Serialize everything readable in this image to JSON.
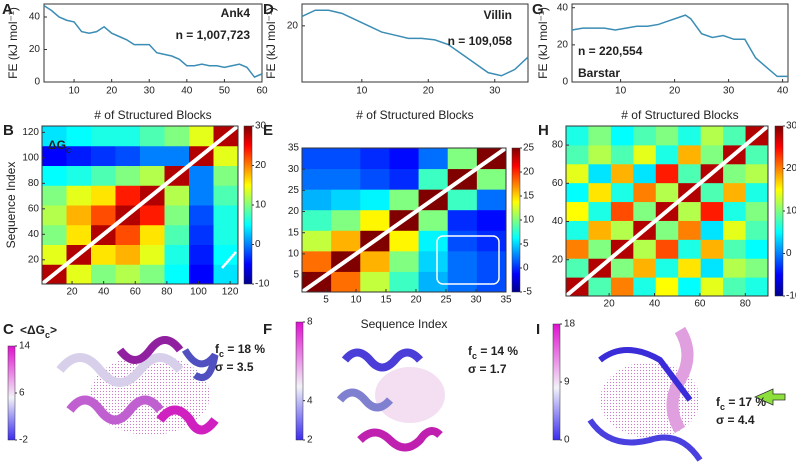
{
  "chart_data": [
    {
      "type": "line",
      "panel": "A",
      "title": "Ank4",
      "n": "n = 1,007,723",
      "ylabel": "FE (kJ mol⁻¹)",
      "xlabel": "# of Structured Blocks",
      "color": "#3b8db5",
      "x": [
        2,
        4,
        6,
        8,
        10,
        12,
        14,
        16,
        18,
        20,
        22,
        24,
        26,
        28,
        30,
        32,
        34,
        36,
        38,
        40,
        42,
        44,
        46,
        48,
        50,
        52,
        54,
        56,
        58,
        60
      ],
      "values": [
        47,
        44,
        40,
        38,
        37,
        31,
        30,
        31,
        34,
        30,
        28,
        26,
        23,
        23,
        23,
        18,
        17,
        16,
        14,
        10,
        10,
        11,
        10,
        10,
        9,
        10,
        11,
        9,
        3,
        5
      ],
      "xlim": [
        2,
        60
      ],
      "ylim": [
        0,
        48
      ],
      "xticks": [
        10,
        20,
        30,
        40,
        50,
        60
      ],
      "yticks": [
        0,
        20,
        40
      ]
    },
    {
      "type": "line",
      "panel": "D",
      "title": "Villin",
      "n": "n = 109,058",
      "ylabel": "FE (kJ mol⁻¹)",
      "xlabel": "# of Structured Blocks",
      "color": "#3b8db5",
      "x": [
        1,
        3,
        5,
        7,
        9,
        11,
        13,
        15,
        17,
        19,
        21,
        23,
        25,
        27,
        29,
        31,
        33,
        35
      ],
      "values": [
        23,
        25,
        25,
        24,
        22,
        20,
        18,
        17,
        16,
        16,
        15.5,
        14,
        11,
        8,
        5,
        4,
        6,
        10
      ],
      "xlim": [
        1,
        35
      ],
      "ylim": [
        2,
        27
      ],
      "xticks": [
        10,
        20,
        30
      ],
      "yticks": [
        20
      ]
    },
    {
      "type": "line",
      "panel": "G",
      "title": "Barstar",
      "n": "n = 220,554",
      "ylabel": "FE (kJ mol⁻¹)",
      "xlabel": "# of Structured Blocks",
      "color": "#3b8db5",
      "x": [
        1,
        3,
        5,
        7,
        9,
        11,
        13,
        15,
        17,
        19,
        21,
        22,
        23,
        25,
        27,
        29,
        31,
        33,
        35,
        37,
        39,
        41
      ],
      "values": [
        28,
        29,
        29,
        29,
        28,
        29,
        30,
        30,
        31,
        33,
        35,
        36,
        34,
        26,
        24,
        25,
        23,
        23,
        13,
        8,
        3,
        3
      ],
      "xlim": [
        1,
        41
      ],
      "ylim": [
        0,
        42
      ],
      "xticks": [
        10,
        20,
        30,
        40
      ],
      "yticks": [
        0,
        20,
        40
      ]
    },
    {
      "type": "heatmap",
      "panel": "B",
      "ylabel": "Sequence Index",
      "annotation": {
        "main": "ΔG",
        "sub": "c"
      },
      "xlim": [
        1,
        125
      ],
      "ylim": [
        1,
        125
      ],
      "xticks": [
        20,
        40,
        60,
        80,
        100,
        120
      ],
      "yticks": [
        20,
        40,
        60,
        80,
        100,
        120
      ],
      "clim": [
        -10,
        30
      ],
      "cticks": [
        -10,
        0,
        10,
        20,
        30
      ],
      "z": [
        [
          28,
          14,
          10,
          12,
          10,
          5,
          -5,
          4
        ],
        [
          14,
          28,
          16,
          18,
          14,
          6,
          -4,
          5
        ],
        [
          10,
          16,
          28,
          22,
          16,
          8,
          -3,
          6
        ],
        [
          12,
          18,
          22,
          28,
          24,
          10,
          -2,
          6
        ],
        [
          10,
          14,
          16,
          24,
          28,
          12,
          0,
          8
        ],
        [
          5,
          6,
          8,
          10,
          12,
          28,
          0,
          10
        ],
        [
          -5,
          -4,
          -3,
          -2,
          0,
          0,
          28,
          14
        ],
        [
          4,
          5,
          6,
          6,
          8,
          10,
          14,
          28
        ]
      ]
    },
    {
      "type": "heatmap",
      "panel": "E",
      "xlabel": "Sequence Index",
      "xlim": [
        1,
        35
      ],
      "ylim": [
        1,
        35
      ],
      "xticks": [
        5,
        10,
        15,
        20,
        25,
        30,
        35
      ],
      "yticks": [
        5,
        10,
        15,
        20,
        25,
        30,
        35
      ],
      "clim": [
        -5,
        25
      ],
      "cticks": [
        -5,
        0,
        5,
        10,
        15,
        20,
        25
      ],
      "z": [
        [
          25,
          18,
          12,
          8,
          4,
          2,
          1
        ],
        [
          18,
          25,
          16,
          10,
          5,
          2,
          1
        ],
        [
          12,
          16,
          25,
          14,
          6,
          1,
          0
        ],
        [
          8,
          10,
          14,
          25,
          10,
          0,
          -1
        ],
        [
          4,
          5,
          6,
          10,
          25,
          8,
          2
        ],
        [
          2,
          2,
          1,
          0,
          8,
          25,
          10
        ],
        [
          1,
          1,
          0,
          -1,
          2,
          10,
          25
        ]
      ]
    },
    {
      "type": "heatmap",
      "panel": "H",
      "xlim": [
        1,
        90
      ],
      "ylim": [
        1,
        90
      ],
      "xticks": [
        20,
        40,
        60,
        80
      ],
      "yticks": [
        20,
        40,
        60,
        80
      ],
      "clim": [
        -10,
        30
      ],
      "cticks": [
        -10,
        0,
        10,
        20,
        30
      ],
      "z": [
        [
          28,
          8,
          20,
          6,
          15,
          5,
          14,
          8,
          6
        ],
        [
          8,
          28,
          10,
          18,
          6,
          16,
          4,
          12,
          10
        ],
        [
          20,
          10,
          28,
          12,
          22,
          6,
          18,
          8,
          5
        ],
        [
          6,
          18,
          12,
          28,
          10,
          20,
          4,
          14,
          8
        ],
        [
          15,
          6,
          22,
          10,
          28,
          12,
          24,
          6,
          10
        ],
        [
          5,
          16,
          6,
          20,
          12,
          28,
          8,
          18,
          6
        ],
        [
          14,
          4,
          18,
          4,
          24,
          8,
          28,
          10,
          12
        ],
        [
          8,
          12,
          8,
          14,
          6,
          18,
          10,
          28,
          8
        ],
        [
          6,
          10,
          5,
          8,
          10,
          6,
          12,
          8,
          28
        ]
      ]
    }
  ],
  "structures": [
    {
      "panel": "C",
      "header": {
        "main": "<ΔG",
        "sub": "c",
        "end": ">"
      },
      "clim": [
        -2,
        14
      ],
      "cticks": [
        -2,
        6,
        14
      ],
      "fc": {
        "main": "f",
        "sub": "c",
        "rest": " = 18 %"
      },
      "sigma": "σ = 3.5"
    },
    {
      "panel": "F",
      "clim": [
        2,
        8
      ],
      "cticks": [
        2,
        4,
        8
      ],
      "fc": {
        "main": "f",
        "sub": "c",
        "rest": " = 14 %"
      },
      "sigma": "σ = 1.7"
    },
    {
      "panel": "I",
      "clim": [
        0,
        18
      ],
      "cticks": [
        0,
        9,
        18
      ],
      "fc": {
        "main": "f",
        "sub": "c",
        "rest": " = 17 %"
      },
      "sigma": "σ = 4.4"
    }
  ]
}
